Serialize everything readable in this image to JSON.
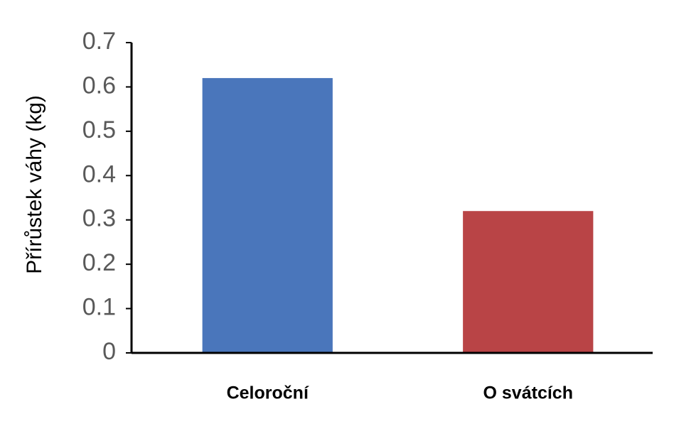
{
  "chart_data": {
    "type": "bar",
    "y_label": "Přírůstek váhy (kg)",
    "categories": [
      "Celoroční",
      "O svátcích"
    ],
    "values": [
      0.62,
      0.32
    ],
    "colors": [
      "#4a76bb",
      "#b94446"
    ],
    "ylim": [
      0,
      0.7
    ],
    "yticks": [
      0,
      0.1,
      0.2,
      0.3,
      0.4,
      0.5,
      0.6,
      0.7
    ],
    "grid": false
  }
}
